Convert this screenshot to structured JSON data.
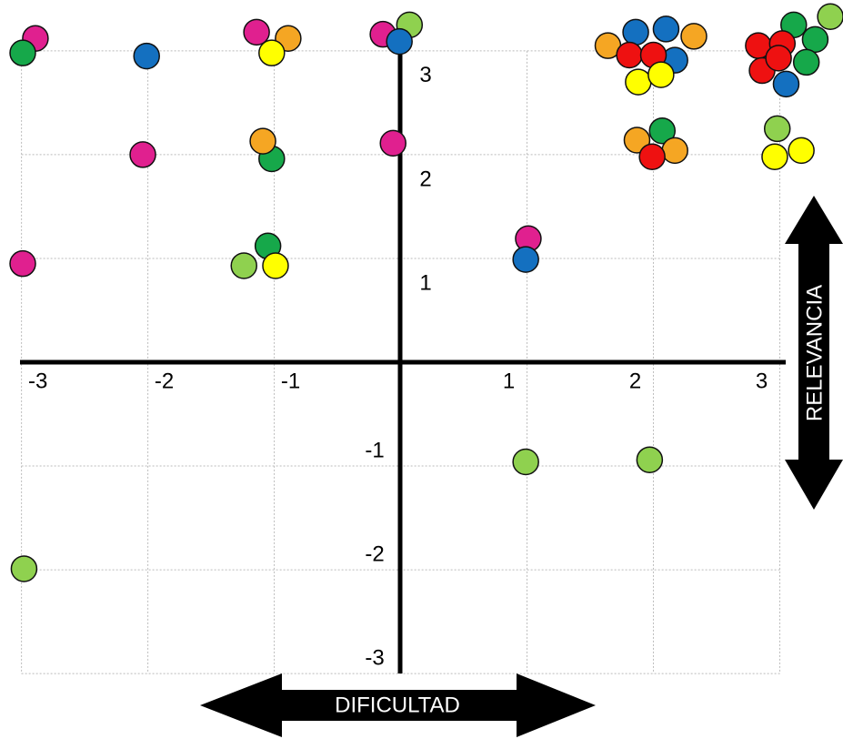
{
  "chart_data": {
    "type": "scatter",
    "x_label": "DIFICULTAD",
    "y_label": "RELEVANCIA",
    "xlim": [
      -3.17,
      3.5
    ],
    "ylim": [
      -3.63,
      3.49
    ],
    "xticks": [
      -3,
      -2,
      -1,
      1,
      2,
      3
    ],
    "yticks": [
      -3,
      -2,
      -1,
      1,
      2,
      3
    ],
    "grid": true,
    "series": [
      {
        "color": "#e0208f",
        "x": [
          -2.89,
          -1.14,
          -0.14,
          -2.04,
          -0.06,
          -2.99,
          1.01
        ],
        "y": [
          3.12,
          3.18,
          3.16,
          2.0,
          2.11,
          0.95,
          1.19
        ]
      },
      {
        "color": "#16a84a",
        "x": [
          -2.99,
          -1.02,
          -1.05,
          2.07,
          3.11,
          3.28,
          3.21
        ],
        "y": [
          2.98,
          1.96,
          1.12,
          2.23,
          3.25,
          3.11,
          2.89
        ]
      },
      {
        "color": "#8fd14f",
        "x": [
          0.07,
          -1.24,
          0.99,
          1.97,
          -2.98,
          3.4,
          2.98
        ],
        "y": [
          3.25,
          0.93,
          -0.96,
          -0.94,
          -1.99,
          3.33,
          2.25
        ]
      },
      {
        "color": "#1470c0",
        "x": [
          -2.01,
          -0.01,
          0.99,
          1.86,
          2.1,
          2.17,
          3.05
        ],
        "y": [
          2.95,
          3.09,
          0.99,
          3.18,
          3.21,
          2.91,
          2.68
        ]
      },
      {
        "color": "#f5a623",
        "x": [
          -0.89,
          -1.09,
          1.64,
          2.32,
          1.87,
          2.17
        ],
        "y": [
          3.12,
          2.13,
          3.05,
          3.14,
          2.14,
          2.04
        ]
      },
      {
        "color": "#ee1111",
        "x": [
          1.81,
          2.0,
          1.99,
          2.83,
          3.02,
          2.86,
          2.99
        ],
        "y": [
          2.96,
          2.96,
          1.98,
          3.05,
          3.07,
          2.81,
          2.93
        ]
      },
      {
        "color": "#ffff00",
        "x": [
          -1.02,
          -0.99,
          1.88,
          2.06,
          2.96,
          3.17
        ],
        "y": [
          2.98,
          0.93,
          2.7,
          2.77,
          1.98,
          2.04
        ]
      }
    ]
  }
}
